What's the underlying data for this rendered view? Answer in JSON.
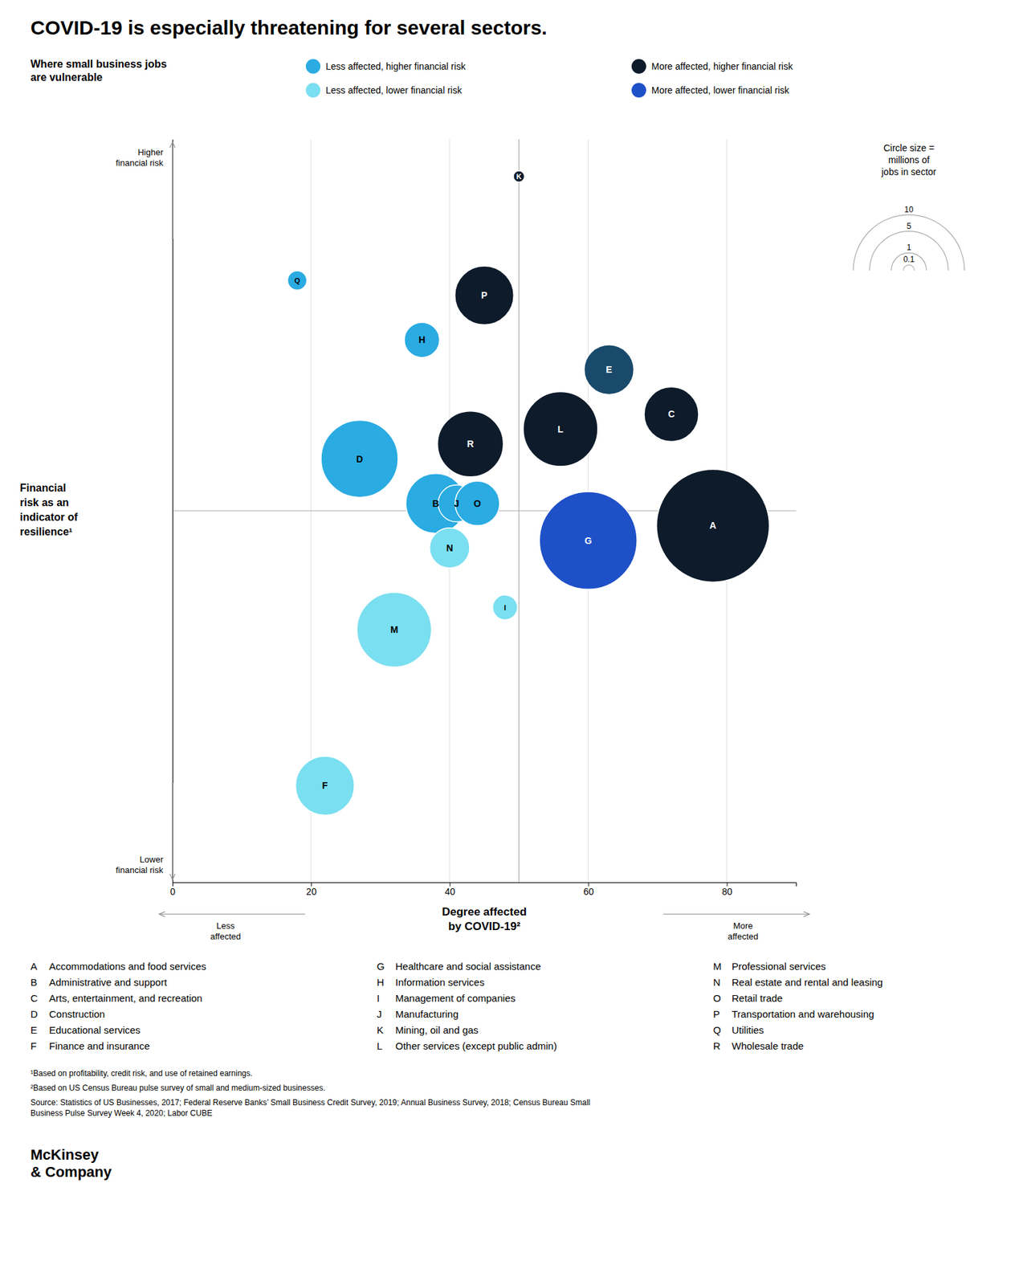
{
  "chart_data": {
    "type": "bubble",
    "title": "COVID-19 is especially threatening for several sectors.",
    "subtitle": "Where small business jobs\nare vulnerable",
    "xlabel": "Degree affected\nby COVID-19²",
    "ylabel": "Financial\nrisk as an\nindicator of\nresilience¹",
    "x_end_labels": [
      "Less\naffected",
      "More\naffected"
    ],
    "y_end_labels": [
      "Higher\nfinancial risk",
      "Lower\nfinancial risk"
    ],
    "xlim": [
      0,
      90
    ],
    "ylim": [
      0,
      100
    ],
    "xticks": [
      0,
      20,
      40,
      60,
      80
    ],
    "tick_labels": "x",
    "grid": true,
    "x_divider": 50,
    "y_divider": 50,
    "legend_items": [
      {
        "label": "Less affected, higher financial risk",
        "color": "#2AABE2"
      },
      {
        "label": "More affected, higher financial risk",
        "color": "#0D1B2A"
      },
      {
        "label": "Less affected, lower financial risk",
        "color": "#7ADFF0"
      },
      {
        "label": "More affected, lower financial risk",
        "color": "#1E50C8"
      }
    ],
    "point_labels": [
      "A",
      "B",
      "C",
      "D",
      "E",
      "F",
      "G",
      "H",
      "I",
      "J",
      "K",
      "L",
      "M",
      "N",
      "O",
      "P",
      "Q",
      "R"
    ],
    "x": [
      78,
      38,
      72,
      27,
      63,
      22,
      60,
      36,
      48,
      41,
      50,
      56,
      32,
      40,
      44,
      45,
      18,
      43
    ],
    "values": [
      48,
      51,
      63,
      57,
      69,
      13,
      46,
      73,
      37,
      51,
      95,
      61,
      34,
      45,
      51,
      79,
      81,
      59
    ],
    "sizes": [
      10.3,
      2.9,
      2.4,
      4.8,
      2.0,
      2.8,
      7.7,
      1.0,
      0.5,
      1.1,
      0.1,
      4.5,
      4.5,
      1.3,
      1.6,
      2.8,
      0.3,
      3.5
    ],
    "colors": [
      "#0D1B2A",
      "#2AABE2",
      "#0D1B2A",
      "#2AABE2",
      "#1A4A6B",
      "#7ADFF0",
      "#1E50C8",
      "#2AABE2",
      "#7ADFF0",
      "#2AABE2",
      "#0D1B2A",
      "#0D1B2A",
      "#7ADFF0",
      "#7ADFF0",
      "#2AABE2",
      "#0D1B2A",
      "#2AABE2",
      "#0D1B2A"
    ],
    "point_names": [
      "Accommodations and food services",
      "Administrative and support",
      "Arts, entertainment, and recreation",
      "Construction",
      "Educational services",
      "Finance and insurance",
      "Healthcare and social assistance",
      "Information services",
      "Management of companies",
      "Manufacturing",
      "Mining, oil and gas",
      "Other services (except public admin)",
      "Professional services",
      "Real estate and rental and leasing",
      "Retail trade",
      "Transportation and warehousing",
      "Utilities",
      "Wholesale trade"
    ],
    "size_legend": {
      "title": "Circle size =\nmillions of\njobs in sector",
      "values": [
        10,
        5,
        1,
        0.1
      ]
    },
    "footnotes": [
      "¹Based on profitability, credit risk, and use of retained earnings.",
      "²Based on US Census Bureau pulse survey of small and medium-sized businesses."
    ],
    "source": "Source: Statistics of US Businesses, 2017; Federal Reserve Banks’ Small Business Credit Survey, 2019; Annual Business Survey, 2018; Census Bureau Small\nBusiness Pulse Survey Week 4, 2020; Labor CUBE",
    "brand": "McKinsey\n& Company"
  }
}
